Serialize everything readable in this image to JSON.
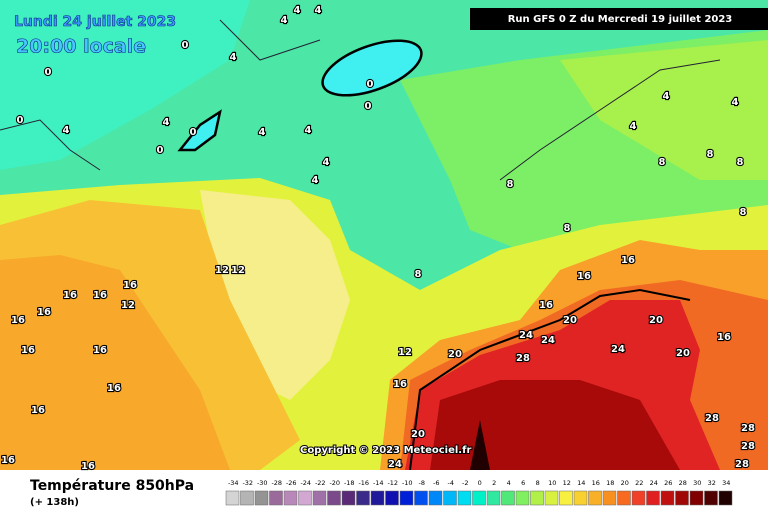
{
  "header": {
    "valid_date": "Lundi 24 juillet 2023",
    "local_time": "20:00 locale",
    "run": "Run GFS 0 Z du Mercredi 19 juillet 2023"
  },
  "copyright": "Copyright © 2023 Meteociel.fr",
  "footer": {
    "title": "Température 850hPa",
    "lead_time": "(+ 138h)"
  },
  "legend": {
    "labels": [
      -34,
      -32,
      -30,
      -28,
      -26,
      -24,
      -22,
      -20,
      -18,
      -16,
      -14,
      -12,
      -10,
      -8,
      -6,
      -4,
      -2,
      0,
      2,
      4,
      6,
      8,
      10,
      12,
      14,
      16,
      18,
      20,
      22,
      24,
      26,
      28,
      30,
      32,
      34
    ],
    "colors": [
      "#d4d4d4",
      "#b4b4b4",
      "#949494",
      "#9a6a9a",
      "#b888b8",
      "#d2a8d2",
      "#a070a8",
      "#7a4a8a",
      "#5a2a78",
      "#3a2a8a",
      "#201a9a",
      "#1010b0",
      "#0020d8",
      "#0050f0",
      "#0088f8",
      "#00b8f8",
      "#00dcf0",
      "#00f0c8",
      "#30e8a0",
      "#50e878",
      "#80f060",
      "#b0f048",
      "#d8f040",
      "#f8f040",
      "#f8d030",
      "#f8b028",
      "#f89020",
      "#f86a20",
      "#f04028",
      "#e02020",
      "#c01010",
      "#a00808",
      "#800000",
      "#500000",
      "#200000"
    ]
  },
  "contour_labels": [
    4,
    4,
    4,
    0,
    4,
    0,
    0,
    0,
    0,
    4,
    4,
    0,
    0,
    4,
    4,
    4,
    4,
    4,
    4,
    4,
    8,
    8,
    8,
    8,
    8,
    8,
    8,
    12,
    12,
    16,
    16,
    16,
    16,
    16,
    12,
    16,
    16,
    16,
    16,
    16,
    20,
    24,
    24,
    12,
    20,
    28,
    24,
    20,
    20,
    16,
    16,
    16,
    16,
    20,
    24,
    28,
    28,
    28,
    28,
    16,
    16
  ]
}
